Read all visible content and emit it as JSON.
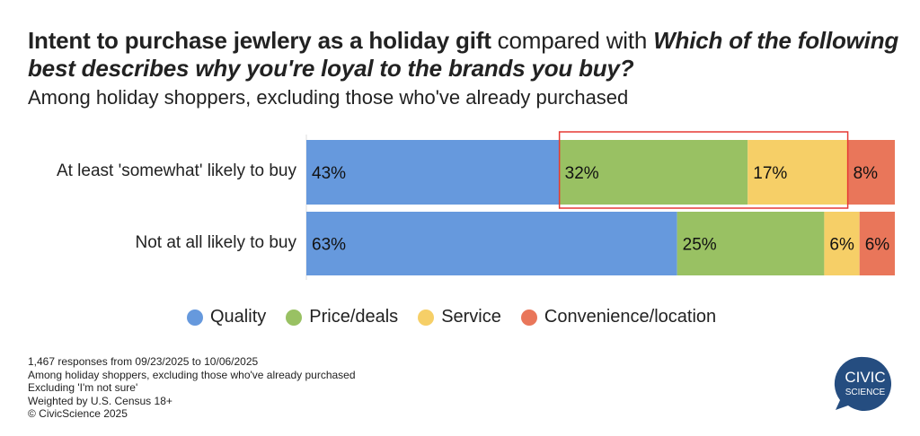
{
  "title": {
    "part1": "Intent to purchase jewlery as a holiday gift",
    "part2": " compared with ",
    "part3": "Which of the following best describes why you're loyal to the brands you buy?"
  },
  "subtitle": "Among holiday shoppers, excluding those who've already purchased",
  "chart_data": {
    "type": "bar",
    "orientation": "horizontal-stacked-100",
    "categories": [
      "At least 'somewhat' likely to buy",
      "Not at all likely to buy"
    ],
    "series": [
      {
        "name": "Quality",
        "color": "#6699dd",
        "values": [
          43,
          63
        ],
        "labels": [
          "43%",
          "63%"
        ]
      },
      {
        "name": "Price/deals",
        "color": "#99c163",
        "values": [
          32,
          25
        ],
        "labels": [
          "32%",
          "25%"
        ]
      },
      {
        "name": "Service",
        "color": "#f6cf67",
        "values": [
          17,
          6
        ],
        "labels": [
          "17%",
          "6%"
        ]
      },
      {
        "name": "Convenience/location",
        "color": "#e9765a",
        "values": [
          8,
          6
        ],
        "labels": [
          "8%",
          "6%"
        ]
      }
    ],
    "xlim": [
      0,
      100
    ],
    "legend": "bottom",
    "highlight": {
      "category_index": 0,
      "series": [
        "Price/deals",
        "Service"
      ],
      "color": "#e53935"
    }
  },
  "notes": [
    "1,467 responses from 09/23/2025 to 10/06/2025",
    "Among holiday shoppers, excluding those who've already purchased",
    "Excluding 'I'm not sure'",
    "Weighted by U.S. Census 18+",
    "© CivicScience 2025"
  ],
  "logo": {
    "line1": "CIVIC",
    "line2": "SCIENCE",
    "color": "#254d80"
  }
}
